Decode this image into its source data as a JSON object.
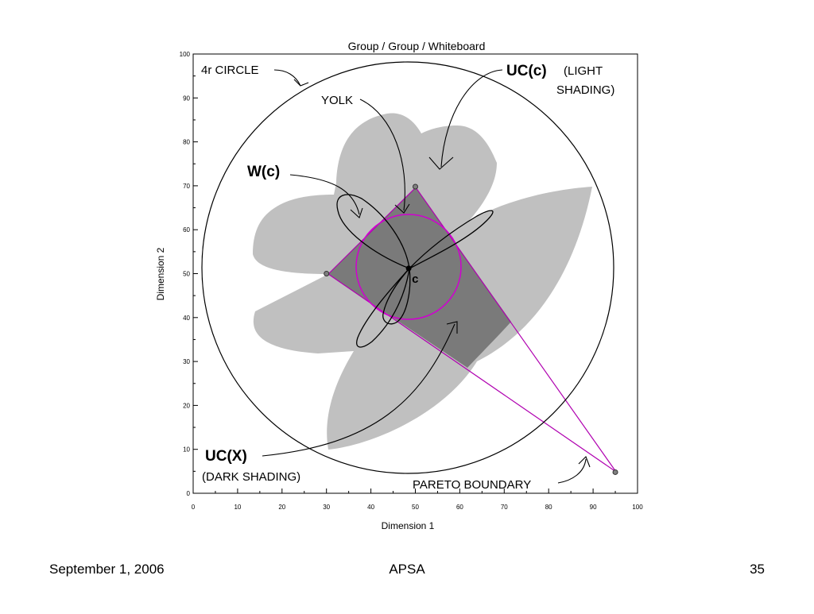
{
  "chart": {
    "title": "Group / Group / Whiteboard",
    "xlabel": "Dimension 1",
    "ylabel": "Dimension 2",
    "xlim": [
      0,
      100
    ],
    "ylim": [
      0,
      100
    ],
    "x_ticks": [
      "0",
      "10",
      "20",
      "30",
      "40",
      "50",
      "60",
      "70",
      "80",
      "90",
      "100"
    ],
    "y_ticks": [
      "0",
      "10",
      "20",
      "30",
      "40",
      "50",
      "60",
      "70",
      "80",
      "90",
      "100"
    ]
  },
  "points": [
    {
      "name": "ideal-point-1",
      "x": 30,
      "y": 50
    },
    {
      "name": "ideal-point-2",
      "x": 50,
      "y": 69.8
    },
    {
      "name": "ideal-point-3",
      "x": 95,
      "y": 4.8
    }
  ],
  "center_point": {
    "label": "c",
    "x": 48.5,
    "y": 51.2
  },
  "annotations": {
    "circle_4r": "4r CIRCLE",
    "uc_c": "UC(c)",
    "light_shading_1": "(LIGHT",
    "light_shading_2": "SHADING)",
    "yolk": "YOLK",
    "w_c": "W(c)",
    "uc_x": "UC(X)",
    "dark_shading": "(DARK SHADING)",
    "pareto": "PARETO BOUNDARY"
  },
  "colors": {
    "light_shading": "#c0c0c0",
    "dark_shading": "#7a7a7a",
    "pareto_line": "#b000b0",
    "yolk_circle": "#d000d0"
  },
  "footer": {
    "date": "September 1, 2006",
    "center": "APSA",
    "page": "35"
  }
}
